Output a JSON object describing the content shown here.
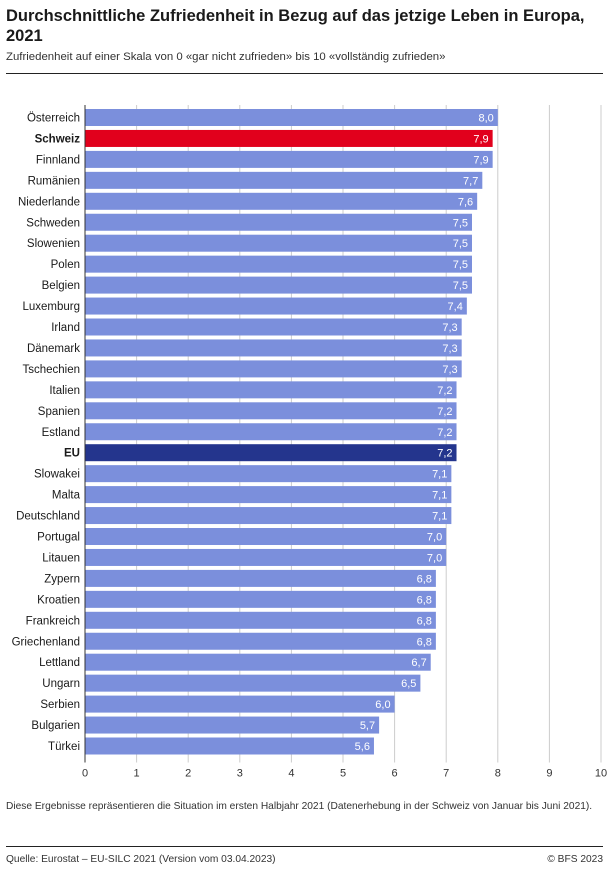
{
  "header": {
    "title": "Durchschnittliche Zufriedenheit in Bezug auf das jetzige Leben in Europa, 2021",
    "subtitle": "Zufriedenheit auf einer Skala von 0 «gar nicht zufrieden» bis 10 «vollständig zufrieden»"
  },
  "footer": {
    "note": "Diese Ergebnisse repräsentieren die Situation im ersten Halbjahr 2021 (Datenerhebung in der Schweiz von Januar bis Juni 2021).",
    "source": "Quelle: Eurostat – EU-SILC 2021 (Version vom 03.04.2023)",
    "copyright": "© BFS 2023"
  },
  "colors": {
    "default_bar": "#7b8fdc",
    "highlight_ch": "#e1001c",
    "highlight_eu": "#24358d",
    "grid": "#cccccc",
    "axis": "#333333"
  },
  "chart_data": {
    "type": "bar",
    "orientation": "horizontal",
    "categories": [
      "Österreich",
      "Schweiz",
      "Finnland",
      "Rumänien",
      "Niederlande",
      "Schweden",
      "Slowenien",
      "Polen",
      "Belgien",
      "Luxemburg",
      "Irland",
      "Dänemark",
      "Tschechien",
      "Italien",
      "Spanien",
      "Estland",
      "EU",
      "Slowakei",
      "Malta",
      "Deutschland",
      "Portugal",
      "Litauen",
      "Zypern",
      "Kroatien",
      "Frankreich",
      "Griechenland",
      "Lettland",
      "Ungarn",
      "Serbien",
      "Bulgarien",
      "Türkei"
    ],
    "values": [
      8.0,
      7.9,
      7.9,
      7.7,
      7.6,
      7.5,
      7.5,
      7.5,
      7.5,
      7.4,
      7.3,
      7.3,
      7.3,
      7.2,
      7.2,
      7.2,
      7.2,
      7.1,
      7.1,
      7.1,
      7.0,
      7.0,
      6.8,
      6.8,
      6.8,
      6.8,
      6.7,
      6.5,
      6.0,
      5.7,
      5.6
    ],
    "value_labels": [
      "8,0",
      "7,9",
      "7,9",
      "7,7",
      "7,6",
      "7,5",
      "7,5",
      "7,5",
      "7,5",
      "7,4",
      "7,3",
      "7,3",
      "7,3",
      "7,2",
      "7,2",
      "7,2",
      "7,2",
      "7,1",
      "7,1",
      "7,1",
      "7,0",
      "7,0",
      "6,8",
      "6,8",
      "6,8",
      "6,8",
      "6,7",
      "6,5",
      "6,0",
      "5,7",
      "5,6"
    ],
    "highlighted": {
      "Schweiz": "highlight_ch",
      "EU": "highlight_eu"
    },
    "bold_categories": [
      "Schweiz",
      "EU"
    ],
    "xlim": [
      0,
      10
    ],
    "xticks": [
      0,
      1,
      2,
      3,
      4,
      5,
      6,
      7,
      8,
      9,
      10
    ],
    "grid": true,
    "legend": false
  }
}
